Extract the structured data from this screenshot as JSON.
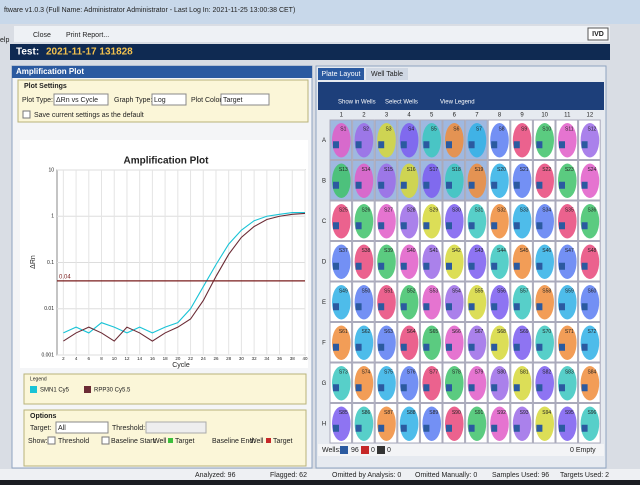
{
  "window": {
    "title": "ftware v1.0.3 (Full Name: Administrator Administrator - Last Log In: 2021-11-25 13:00:38 CET)",
    "side": "elp",
    "badge": "IVD"
  },
  "menu": {
    "close": "Close",
    "print": "Print Report..."
  },
  "test": {
    "label": "Test:",
    "name": "2021-11-17 131828"
  },
  "amplification_plot": {
    "panel_title": "Amplification Plot",
    "settings": {
      "title": "Plot Settings",
      "plot_type_label": "Plot Type:",
      "plot_type": "ΔRn vs Cycle",
      "graph_type_label": "Graph Type:",
      "graph_type": "Log",
      "plot_color_label": "Plot Color:",
      "plot_color": "Target",
      "save_default": "Save current settings as the default"
    },
    "chart": {
      "type": "line",
      "title": "Amplification Plot",
      "x_label": "Cycle",
      "y_label": "ΔRn",
      "log_y": true,
      "x": [
        2,
        4,
        6,
        8,
        10,
        12,
        14,
        16,
        18,
        20,
        22,
        24,
        26,
        28,
        30,
        32,
        34,
        36,
        38,
        40
      ],
      "series": [
        {
          "name": "SMN1 Cy5",
          "color": "#19c3d6",
          "values": [
            0.003,
            0.004,
            0.003,
            0.005,
            0.004,
            0.003,
            0.004,
            0.003,
            0.004,
            0.005,
            0.01,
            0.03,
            0.09,
            0.25,
            0.5,
            0.8,
            1.0,
            1.1,
            1.2,
            1.2
          ]
        },
        {
          "name": "RPP30 Cy5.5",
          "color": "#6b2b35",
          "values": [
            0.002,
            0.003,
            0.004,
            0.003,
            0.002,
            0.004,
            0.003,
            0.002,
            0.003,
            0.004,
            0.006,
            0.015,
            0.05,
            0.15,
            0.35,
            0.6,
            0.85,
            1.0,
            1.1,
            1.15
          ]
        }
      ],
      "threshold": 0.04,
      "threshold_color": "#7a1d1d",
      "xlim": [
        1,
        40
      ],
      "xticks": [
        2,
        4,
        6,
        8,
        10,
        12,
        14,
        16,
        18,
        20,
        22,
        24,
        26,
        28,
        30,
        32,
        34,
        36,
        38,
        40
      ],
      "ylim": [
        0.001,
        10
      ],
      "yticks": [
        0.001,
        0.01,
        0.1,
        1,
        10
      ],
      "grid": true
    },
    "legend_title": "Legend",
    "options": {
      "title": "Options",
      "target_label": "Target:",
      "target": "All",
      "threshold_label": "Threshold:",
      "show_label": "Show:",
      "threshold": "Threshold",
      "baseline_start": "Baseline Start:",
      "well": "Well",
      "target_item": "Target",
      "baseline_end": "Baseline End:",
      "well2": "Well",
      "target_item2": "Target"
    }
  },
  "plate": {
    "tabs": [
      "Plate Layout",
      "Well Table"
    ],
    "show_in_wells": "Show in Wells",
    "select_wells": "Select Wells",
    "view_legend": "View Legend",
    "columns": [
      "1",
      "2",
      "3",
      "4",
      "5",
      "6",
      "7",
      "8",
      "9",
      "10",
      "11",
      "12"
    ],
    "rows": [
      "A",
      "B",
      "C",
      "D",
      "E",
      "F",
      "G",
      "H"
    ],
    "wells": [
      [
        "S1",
        "S2",
        "S3",
        "S4",
        "S5",
        "S6",
        "S7",
        "S8",
        "S9",
        "S10",
        "S11",
        "S12"
      ],
      [
        "S13",
        "S14",
        "S15",
        "S16",
        "S17",
        "S18",
        "S19",
        "S20",
        "S21",
        "S22",
        "S23",
        "S24"
      ],
      [
        "S25",
        "S26",
        "S27",
        "S28",
        "S29",
        "S30",
        "S31",
        "S32",
        "S33",
        "S34",
        "S35",
        "S36"
      ],
      [
        "S37",
        "S38",
        "S39",
        "S40",
        "S41",
        "S42",
        "S43",
        "S44",
        "S45",
        "S46",
        "S47",
        "S48"
      ],
      [
        "S49",
        "S50",
        "S51",
        "S52",
        "S53",
        "S54",
        "S55",
        "S56",
        "S57",
        "S58",
        "S59",
        "S60"
      ],
      [
        "S61",
        "S62",
        "S63",
        "S64",
        "S65",
        "S66",
        "S67",
        "S68",
        "S69",
        "S70",
        "S71",
        "S72"
      ],
      [
        "S73",
        "S74",
        "S75",
        "S76",
        "S77",
        "S78",
        "S79",
        "S80",
        "S81",
        "S82",
        "S83",
        "S84"
      ],
      [
        "S85",
        "S86",
        "S87",
        "S88",
        "S89",
        "S90",
        "S91",
        "S92",
        "S93",
        "S94",
        "S95",
        "S96"
      ]
    ],
    "footer": {
      "wells_label": "Wells:",
      "unknown": "96",
      "standard": "0",
      "ntc": "0",
      "empty": "0 Empty"
    }
  },
  "status": {
    "analyzed": "Analyzed: 96",
    "flagged": "Flagged: 62",
    "omitted_analysis": "Omitted by Analysis: 0",
    "omitted_manual": "Omitted Manually: 0",
    "samples": "Samples Used: 96",
    "targets": "Targets Used: 2"
  }
}
